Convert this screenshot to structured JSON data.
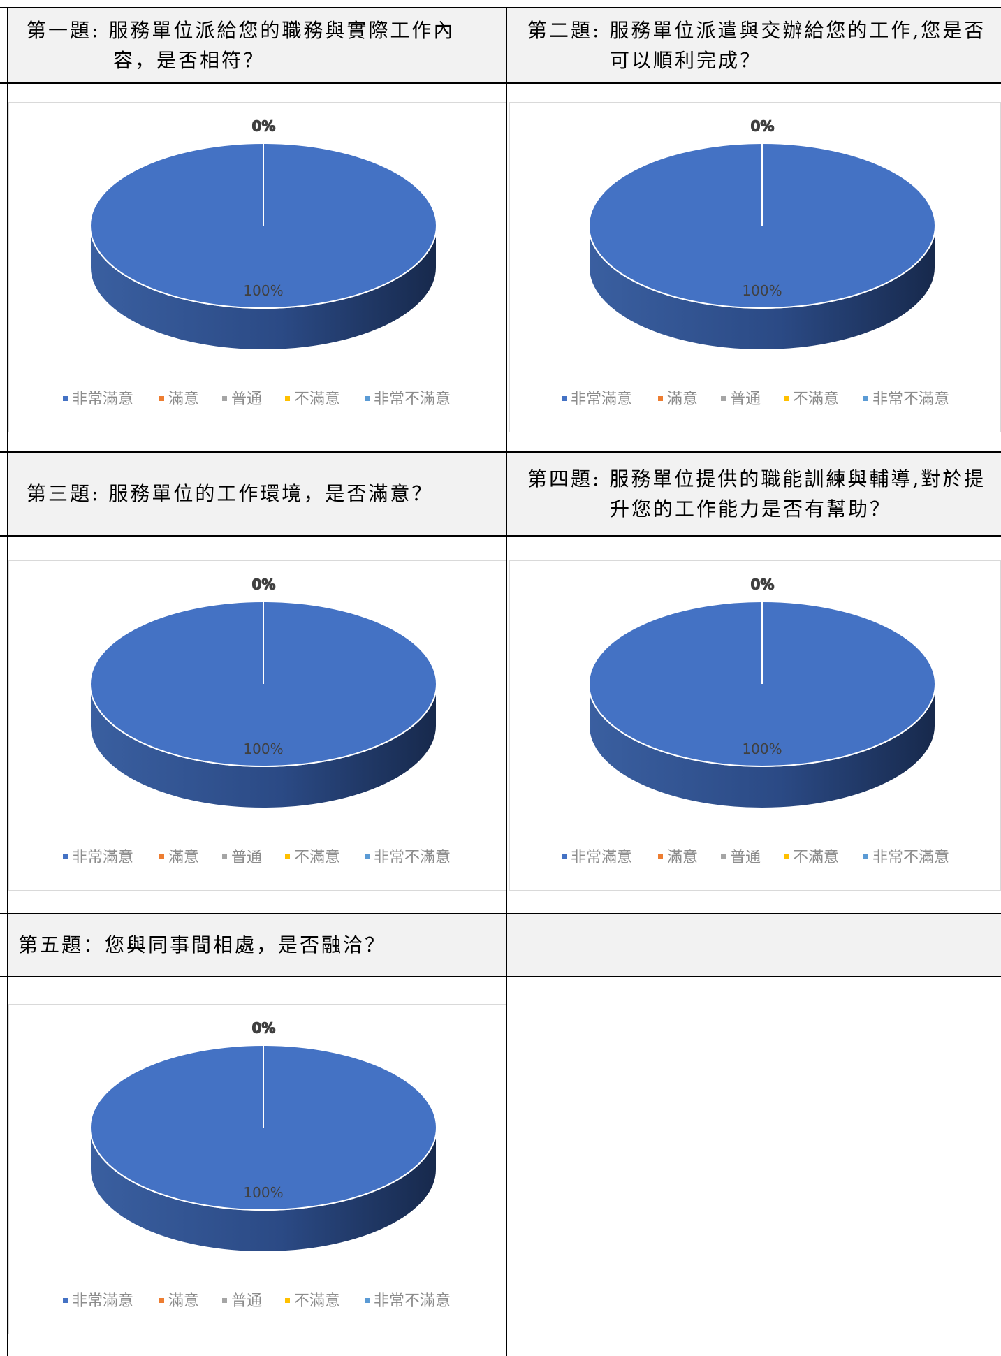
{
  "panels": [
    {
      "title_lines": [
        "第一題: 服務單位派給您的職務與實際工作內",
        "容，是否相符？"
      ],
      "chart_data": {
        "type": "pie",
        "categories": [
          "非常滿意",
          "滿意",
          "普通",
          "不滿意",
          "非常不滿意"
        ],
        "values": [
          100,
          0,
          0,
          0,
          0
        ],
        "data_labels": [
          "100%",
          "0%",
          "0%",
          "0%",
          "0%"
        ]
      }
    },
    {
      "title_lines": [
        "第二題: 服務單位派遣與交辦給您的工作,您是否",
        "可以順利完成？"
      ],
      "chart_data": {
        "type": "pie",
        "categories": [
          "非常滿意",
          "滿意",
          "普通",
          "不滿意",
          "非常不滿意"
        ],
        "values": [
          100,
          0,
          0,
          0,
          0
        ],
        "data_labels": [
          "100%",
          "0%",
          "0%",
          "0%",
          "0%"
        ]
      }
    },
    {
      "title_lines": [
        "第三題: 服務單位的工作環境，是否滿意？",
        ""
      ],
      "chart_data": {
        "type": "pie",
        "categories": [
          "非常滿意",
          "滿意",
          "普通",
          "不滿意",
          "非常不滿意"
        ],
        "values": [
          100,
          0,
          0,
          0,
          0
        ],
        "data_labels": [
          "100%",
          "0%",
          "0%",
          "0%",
          "0%"
        ]
      }
    },
    {
      "title_lines": [
        "第四題: 服務單位提供的職能訓練與輔導,對於提",
        "升您的工作能力是否有幫助？"
      ],
      "chart_data": {
        "type": "pie",
        "categories": [
          "非常滿意",
          "滿意",
          "普通",
          "不滿意",
          "非常不滿意"
        ],
        "values": [
          100,
          0,
          0,
          0,
          0
        ],
        "data_labels": [
          "100%",
          "0%",
          "0%",
          "0%",
          "0%"
        ]
      }
    },
    {
      "title_lines": [
        "第五題：您與同事間相處，是否融洽？",
        ""
      ],
      "chart_data": {
        "type": "pie",
        "categories": [
          "非常滿意",
          "滿意",
          "普通",
          "不滿意",
          "非常不滿意"
        ],
        "values": [
          100,
          0,
          0,
          0,
          0
        ],
        "data_labels": [
          "100%",
          "0%",
          "0%",
          "0%",
          "0%"
        ]
      }
    }
  ],
  "legend_colors": [
    "#4472c4",
    "#ed7d31",
    "#a5a5a5",
    "#ffc000",
    "#5b9bd5"
  ]
}
